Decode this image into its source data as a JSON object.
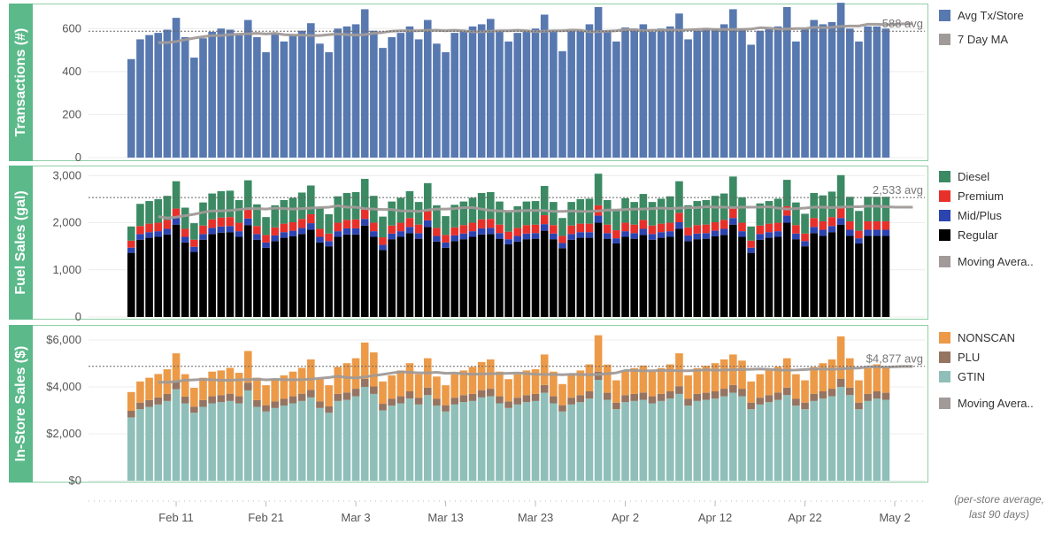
{
  "colors": {
    "transactions": "#5878b0",
    "moving_avg": "#a09a98",
    "diesel": "#3b8a63",
    "premium": "#e8302b",
    "mid_plus": "#2c44b0",
    "regular": "#000000",
    "nonscan": "#ec9a48",
    "plu": "#957462",
    "gtin": "#8fbfb8",
    "frame": "#8fcfa6",
    "label_box": "#5bb98a"
  },
  "x_ticks": [
    "Feb 11",
    "Feb 21",
    "Mar 3",
    "Mar 13",
    "Mar 23",
    "Apr 2",
    "Apr 12",
    "Apr 22",
    "May 2"
  ],
  "footnote": [
    "(per-store average,",
    "last 90 days)"
  ],
  "chart_data": [
    {
      "type": "bar",
      "title": "",
      "ylabel": "Transactions (#)",
      "ylim": [
        0,
        700
      ],
      "y_ticks": [
        0,
        200,
        400,
        600
      ],
      "y_tick_labels": [
        "0",
        "200",
        "400",
        "600"
      ],
      "start_date": "Feb 6",
      "reference_line": {
        "value": 588,
        "label": "588 avg"
      },
      "series": [
        {
          "name": "Avg Tx/Store",
          "values": [
            458,
            550,
            570,
            580,
            595,
            650,
            560,
            465,
            555,
            585,
            600,
            595,
            570,
            640,
            560,
            490,
            580,
            540,
            570,
            590,
            625,
            530,
            490,
            600,
            610,
            620,
            690,
            590,
            510,
            560,
            580,
            610,
            550,
            640,
            530,
            490,
            580,
            590,
            610,
            620,
            645,
            590,
            540,
            580,
            590,
            600,
            665,
            590,
            495,
            590,
            590,
            620,
            700,
            590,
            540,
            605,
            600,
            620,
            585,
            600,
            610,
            670,
            550,
            590,
            600,
            600,
            620,
            690,
            600,
            525,
            590,
            600,
            610,
            700,
            540,
            600,
            640,
            620,
            630,
            720,
            600,
            540,
            610,
            610,
            600
          ]
        },
        {
          "name": "7 Day MA",
          "type": "line",
          "values": [
            535,
            535,
            540,
            548,
            556,
            562,
            568,
            568,
            572,
            574,
            576,
            578,
            575,
            578,
            572,
            570,
            570,
            568,
            568,
            572,
            575,
            572,
            570,
            572,
            578,
            582,
            588,
            590,
            590,
            590,
            592,
            592,
            590,
            592,
            590,
            585,
            585,
            588,
            590,
            590,
            592,
            590,
            586,
            588,
            590,
            590,
            593,
            592,
            585,
            586,
            588,
            590,
            596,
            594,
            590,
            592,
            592,
            594,
            592,
            594,
            596,
            598,
            596,
            596,
            596,
            596,
            598,
            604,
            602,
            598,
            598,
            600,
            600,
            606,
            604,
            606,
            610,
            612,
            612,
            620,
            620,
            618,
            620,
            622,
            622
          ]
        }
      ]
    },
    {
      "type": "bar",
      "title": "",
      "stacked": true,
      "ylabel": "Fuel Sales (gal)",
      "ylim": [
        0,
        3100
      ],
      "y_ticks": [
        0,
        1000,
        2000,
        3000
      ],
      "y_tick_labels": [
        "0",
        "1,000",
        "2,000",
        "3,000"
      ],
      "start_date": "Feb 6",
      "reference_line": {
        "value": 2533,
        "label": "2,533 avg"
      },
      "series": [
        {
          "name": "Regular",
          "values": [
            1360,
            1640,
            1680,
            1700,
            1750,
            1960,
            1580,
            1380,
            1640,
            1760,
            1790,
            1800,
            1700,
            1950,
            1640,
            1470,
            1610,
            1680,
            1710,
            1760,
            1850,
            1580,
            1500,
            1700,
            1750,
            1750,
            1940,
            1700,
            1420,
            1650,
            1700,
            1780,
            1660,
            1910,
            1600,
            1470,
            1610,
            1650,
            1700,
            1750,
            1760,
            1660,
            1540,
            1600,
            1650,
            1660,
            1830,
            1650,
            1460,
            1640,
            1680,
            1680,
            2000,
            1660,
            1560,
            1700,
            1660,
            1740,
            1640,
            1680,
            1700,
            1870,
            1610,
            1650,
            1660,
            1710,
            1740,
            1960,
            1700,
            1360,
            1640,
            1680,
            1700,
            2000,
            1650,
            1500,
            1780,
            1720,
            1800,
            1960,
            1720,
            1560,
            1720,
            1720,
            1720
          ]
        },
        {
          "name": "Mid/Plus",
          "values": [
            110,
            120,
            120,
            120,
            120,
            140,
            120,
            110,
            120,
            130,
            130,
            130,
            120,
            140,
            120,
            110,
            120,
            120,
            120,
            130,
            140,
            120,
            110,
            120,
            130,
            130,
            140,
            120,
            110,
            120,
            120,
            130,
            120,
            140,
            120,
            110,
            120,
            120,
            120,
            130,
            130,
            120,
            110,
            120,
            120,
            120,
            140,
            120,
            110,
            120,
            120,
            120,
            150,
            120,
            110,
            120,
            120,
            130,
            120,
            120,
            120,
            140,
            120,
            120,
            120,
            120,
            130,
            140,
            120,
            110,
            120,
            120,
            120,
            150,
            120,
            110,
            130,
            130,
            130,
            140,
            130,
            110,
            130,
            130,
            130
          ]
        },
        {
          "name": "Premium",
          "values": [
            150,
            170,
            180,
            180,
            190,
            200,
            170,
            150,
            180,
            180,
            190,
            190,
            180,
            200,
            170,
            160,
            170,
            180,
            180,
            190,
            190,
            170,
            160,
            180,
            180,
            190,
            200,
            180,
            160,
            170,
            180,
            190,
            180,
            200,
            170,
            160,
            170,
            180,
            180,
            190,
            190,
            180,
            160,
            170,
            180,
            180,
            190,
            180,
            150,
            180,
            180,
            180,
            220,
            180,
            170,
            180,
            180,
            190,
            180,
            180,
            180,
            200,
            170,
            180,
            180,
            180,
            190,
            210,
            180,
            150,
            180,
            180,
            180,
            200,
            180,
            160,
            190,
            180,
            190,
            210,
            180,
            160,
            180,
            180,
            180
          ]
        },
        {
          "name": "Diesel",
          "values": [
            300,
            470,
            480,
            500,
            510,
            580,
            450,
            350,
            490,
            550,
            560,
            560,
            480,
            610,
            460,
            380,
            470,
            500,
            520,
            560,
            610,
            450,
            410,
            560,
            570,
            580,
            650,
            570,
            440,
            510,
            530,
            570,
            480,
            590,
            480,
            400,
            480,
            500,
            530,
            560,
            570,
            490,
            420,
            460,
            500,
            500,
            620,
            490,
            380,
            500,
            520,
            530,
            670,
            520,
            440,
            520,
            480,
            550,
            500,
            530,
            560,
            670,
            470,
            510,
            520,
            560,
            560,
            670,
            540,
            300,
            470,
            480,
            510,
            560,
            480,
            420,
            530,
            550,
            540,
            700,
            520,
            420,
            520,
            520,
            520
          ]
        },
        {
          "name": "Moving Avera..",
          "type": "line",
          "values": [
            2130,
            2100,
            2120,
            2150,
            2180,
            2220,
            2250,
            2250,
            2260,
            2280,
            2300,
            2300,
            2290,
            2310,
            2300,
            2290,
            2300,
            2310,
            2320,
            2330,
            2360,
            2330,
            2330,
            2300,
            2290,
            2280,
            2280,
            2250,
            2250,
            2240,
            2270,
            2290,
            2290,
            2300,
            2320,
            2320,
            2290,
            2260,
            2250,
            2240,
            2250,
            2260,
            2260,
            2260,
            2240,
            2240,
            2250,
            2240,
            2240,
            2250,
            2270,
            2270,
            2280,
            2290,
            2290,
            2300,
            2310,
            2300,
            2310,
            2320,
            2320,
            2340,
            2330,
            2330,
            2320,
            2330,
            2330,
            2330,
            2340,
            2310,
            2290,
            2300,
            2310,
            2330,
            2330,
            2320,
            2330,
            2340,
            2340,
            2350,
            2350,
            2340,
            2330,
            2330,
            2330
          ]
        }
      ]
    },
    {
      "type": "bar",
      "title": "",
      "stacked": true,
      "ylabel": "In-Store Sales ($)",
      "ylim": [
        0,
        6300
      ],
      "y_ticks": [
        0,
        2000,
        4000,
        6000
      ],
      "y_tick_labels": [
        "$0",
        "$2,000",
        "$4,000",
        "$6,000"
      ],
      "start_date": "Feb 6",
      "reference_line": {
        "value": 4877,
        "label": "$4,877 avg"
      },
      "series": [
        {
          "name": "GTIN",
          "values": [
            2700,
            3050,
            3150,
            3250,
            3400,
            3900,
            3300,
            2900,
            3150,
            3300,
            3350,
            3400,
            3300,
            3850,
            3150,
            2950,
            3100,
            3200,
            3300,
            3400,
            3550,
            3100,
            2900,
            3400,
            3450,
            3600,
            4000,
            3700,
            3000,
            3200,
            3300,
            3500,
            3250,
            3650,
            3200,
            2950,
            3250,
            3350,
            3400,
            3550,
            3600,
            3300,
            3100,
            3250,
            3350,
            3400,
            3750,
            3300,
            2950,
            3250,
            3350,
            3500,
            4300,
            3450,
            3050,
            3350,
            3400,
            3450,
            3300,
            3400,
            3500,
            3700,
            3200,
            3400,
            3450,
            3500,
            3600,
            3750,
            3600,
            3050,
            3250,
            3350,
            3450,
            3650,
            3200,
            3050,
            3400,
            3500,
            3600,
            4000,
            3650,
            3050,
            3400,
            3500,
            3450
          ]
        },
        {
          "name": "PLU",
          "values": [
            280,
            280,
            290,
            300,
            300,
            330,
            290,
            260,
            290,
            300,
            300,
            310,
            300,
            330,
            290,
            270,
            280,
            290,
            300,
            310,
            320,
            280,
            270,
            300,
            310,
            320,
            340,
            320,
            280,
            290,
            300,
            310,
            290,
            320,
            290,
            270,
            290,
            300,
            300,
            310,
            320,
            300,
            280,
            290,
            300,
            300,
            330,
            300,
            270,
            290,
            300,
            310,
            350,
            300,
            280,
            300,
            300,
            310,
            300,
            300,
            310,
            330,
            290,
            300,
            300,
            310,
            320,
            330,
            320,
            280,
            290,
            300,
            310,
            320,
            290,
            280,
            300,
            310,
            320,
            350,
            320,
            280,
            300,
            310,
            300
          ]
        },
        {
          "name": "NONSCAN",
          "values": [
            800,
            900,
            950,
            1000,
            1050,
            1200,
            950,
            800,
            950,
            1050,
            1050,
            1100,
            1000,
            1350,
            950,
            850,
            950,
            1000,
            1050,
            1100,
            1300,
            950,
            900,
            1150,
            1250,
            1300,
            1550,
            1450,
            950,
            1000,
            1100,
            1200,
            1000,
            1250,
            950,
            850,
            1000,
            1050,
            1150,
            1200,
            1250,
            1050,
            950,
            1000,
            1050,
            1050,
            1300,
            1050,
            900,
            1000,
            1050,
            1150,
            1550,
            1200,
            950,
            1050,
            1100,
            1150,
            1050,
            1100,
            1150,
            1400,
            1000,
            1100,
            1150,
            1200,
            1250,
            1300,
            1200,
            900,
            1000,
            1050,
            1100,
            1250,
            1050,
            950,
            1150,
            1200,
            1250,
            1800,
            1250,
            950,
            1100,
            1150,
            1050
          ]
        },
        {
          "name": "Moving Avera..",
          "type": "line",
          "values": [
            4200,
            4200,
            4230,
            4280,
            4300,
            4320,
            4300,
            4280,
            4280,
            4300,
            4310,
            4330,
            4300,
            4320,
            4310,
            4300,
            4310,
            4330,
            4370,
            4400,
            4450,
            4400,
            4380,
            4420,
            4480,
            4530,
            4590,
            4640,
            4620,
            4600,
            4600,
            4620,
            4580,
            4590,
            4560,
            4540,
            4550,
            4560,
            4570,
            4580,
            4590,
            4570,
            4540,
            4530,
            4530,
            4520,
            4540,
            4530,
            4520,
            4530,
            4560,
            4600,
            4700,
            4700,
            4680,
            4690,
            4700,
            4700,
            4690,
            4690,
            4700,
            4730,
            4710,
            4720,
            4730,
            4740,
            4750,
            4760,
            4750,
            4720,
            4710,
            4720,
            4740,
            4760,
            4760,
            4750,
            4770,
            4790,
            4800,
            4850,
            4860,
            4840,
            4860,
            4870,
            4870
          ]
        }
      ]
    }
  ]
}
